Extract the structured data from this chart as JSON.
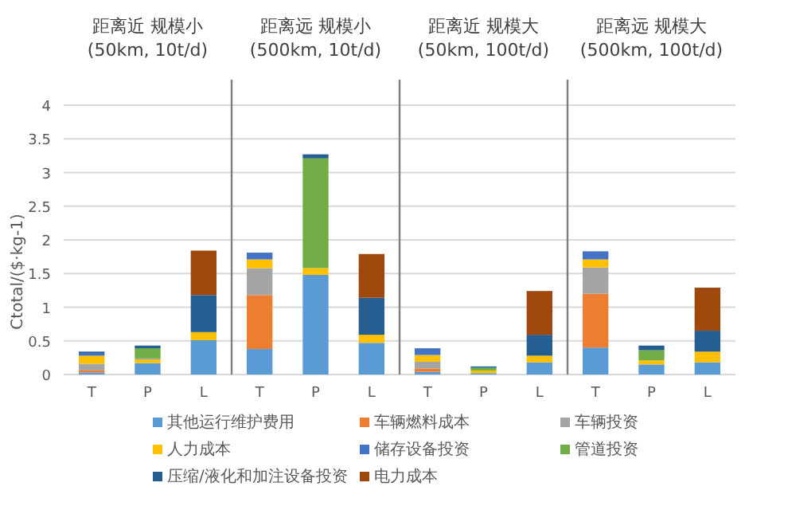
{
  "chart_data": [
    {
      "type": "bar",
      "stacked": true,
      "title": "距离近  规模小",
      "subtitle": "(50km, 10t/d)",
      "ylabel": "Ctotal/($·kg-1)",
      "categories": [
        "T",
        "P",
        "L"
      ],
      "ylim": [
        0,
        4
      ],
      "yticks": [
        0,
        0.5,
        1,
        1.5,
        2,
        2.5,
        3,
        3.5,
        4
      ],
      "grid": "y",
      "legend": "bottom",
      "series": [
        {
          "name": "其他运行维护费用",
          "color": "#5b9bd5",
          "values": [
            0.03,
            0.17,
            0.51
          ]
        },
        {
          "name": "车辆燃料成本",
          "color": "#ed7d31",
          "values": [
            0.03,
            0,
            0
          ]
        },
        {
          "name": "车辆投资",
          "color": "#a5a5a5",
          "values": [
            0.1,
            0,
            0
          ]
        },
        {
          "name": "人力成本",
          "color": "#ffc000",
          "values": [
            0.12,
            0.06,
            0.12
          ]
        },
        {
          "name": "储存设备投资",
          "color": "#4472c4",
          "values": [
            0.04,
            0.01,
            0
          ]
        },
        {
          "name": "管道投资",
          "color": "#70ad47",
          "values": [
            0,
            0.15,
            0
          ]
        },
        {
          "name": "压缩/液化和加注设备投资",
          "color": "#255e91",
          "values": [
            0.02,
            0.04,
            0.55
          ]
        },
        {
          "name": "电力成本",
          "color": "#9e480e",
          "values": [
            0,
            0,
            0.66
          ]
        }
      ]
    },
    {
      "type": "bar",
      "stacked": true,
      "title": "距离远  规模小",
      "subtitle": "(500km, 10t/d)",
      "categories": [
        "T",
        "P",
        "L"
      ],
      "ylim": [
        0,
        4
      ],
      "yticks": [
        0,
        0.5,
        1,
        1.5,
        2,
        2.5,
        3,
        3.5,
        4
      ],
      "grid": "y",
      "tick_labels": "x",
      "series": [
        {
          "color": "#5b9bd5",
          "values": [
            0.38,
            1.48,
            0.47
          ]
        },
        {
          "color": "#ed7d31",
          "values": [
            0.8,
            0,
            0
          ]
        },
        {
          "color": "#a5a5a5",
          "values": [
            0.4,
            0,
            0
          ]
        },
        {
          "color": "#ffc000",
          "values": [
            0.13,
            0.1,
            0.12
          ]
        },
        {
          "color": "#4472c4",
          "values": [
            0.1,
            0,
            0
          ]
        },
        {
          "color": "#70ad47",
          "values": [
            0,
            1.63,
            0
          ]
        },
        {
          "color": "#255e91",
          "values": [
            0,
            0.06,
            0.55
          ]
        },
        {
          "color": "#9e480e",
          "values": [
            0,
            0,
            0.65
          ]
        }
      ]
    },
    {
      "type": "bar",
      "stacked": true,
      "title": "距离近  规模大",
      "subtitle": "(50km, 100t/d)",
      "categories": [
        "T",
        "P",
        "L"
      ],
      "ylim": [
        0,
        4
      ],
      "yticks": [
        0,
        0.5,
        1,
        1.5,
        2,
        2.5,
        3,
        3.5,
        4
      ],
      "grid": "y",
      "tick_labels": "x",
      "series": [
        {
          "color": "#5b9bd5",
          "values": [
            0.04,
            0.02,
            0.18
          ]
        },
        {
          "color": "#ed7d31",
          "values": [
            0.05,
            0,
            0
          ]
        },
        {
          "color": "#a5a5a5",
          "values": [
            0.1,
            0,
            0
          ]
        },
        {
          "color": "#ffc000",
          "values": [
            0.1,
            0.04,
            0.1
          ]
        },
        {
          "color": "#4472c4",
          "values": [
            0.1,
            0,
            0
          ]
        },
        {
          "color": "#70ad47",
          "values": [
            0,
            0.04,
            0
          ]
        },
        {
          "color": "#255e91",
          "values": [
            0,
            0.02,
            0.31
          ]
        },
        {
          "color": "#9e480e",
          "values": [
            0,
            0,
            0.65
          ]
        }
      ]
    },
    {
      "type": "bar",
      "stacked": true,
      "title": "距离远  规模大",
      "subtitle": "(500km, 100t/d)",
      "categories": [
        "T",
        "P",
        "L"
      ],
      "ylim": [
        0,
        4
      ],
      "yticks": [
        0,
        0.5,
        1,
        1.5,
        2,
        2.5,
        3,
        3.5,
        4
      ],
      "grid": "y",
      "tick_labels": "x",
      "series": [
        {
          "color": "#5b9bd5",
          "values": [
            0.4,
            0.15,
            0.18
          ]
        },
        {
          "color": "#ed7d31",
          "values": [
            0.8,
            0,
            0
          ]
        },
        {
          "color": "#a5a5a5",
          "values": [
            0.39,
            0,
            0
          ]
        },
        {
          "color": "#ffc000",
          "values": [
            0.12,
            0.06,
            0.16
          ]
        },
        {
          "color": "#4472c4",
          "values": [
            0.12,
            0,
            0
          ]
        },
        {
          "color": "#70ad47",
          "values": [
            0,
            0.15,
            0
          ]
        },
        {
          "color": "#255e91",
          "values": [
            0,
            0.07,
            0.31
          ]
        },
        {
          "color": "#9e480e",
          "values": [
            0,
            0,
            0.64
          ]
        }
      ]
    }
  ]
}
